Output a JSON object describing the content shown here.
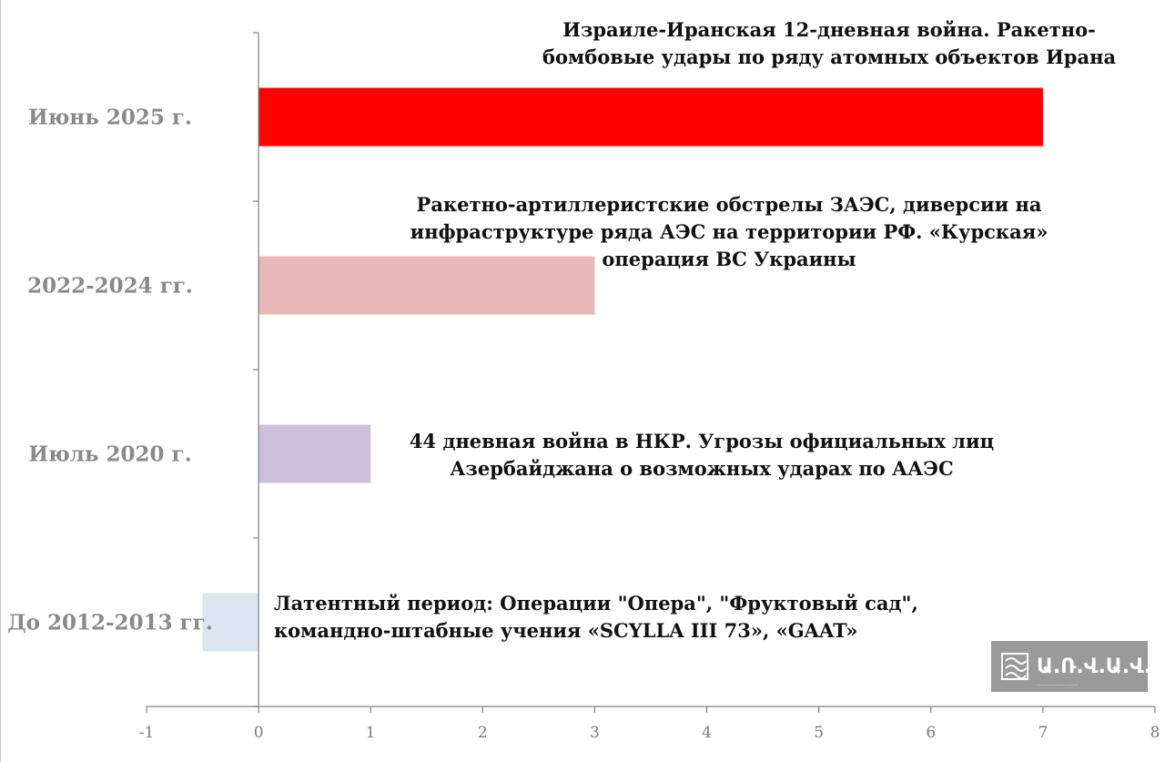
{
  "chart_data": {
    "type": "bar",
    "orientation": "horizontal",
    "categories": [
      "Июнь 2025 г.",
      "2022-2024 гг.",
      "Июль 2020 г.",
      "До 2012-2013 гг."
    ],
    "values": [
      7,
      3,
      1,
      -0.5
    ],
    "colors": [
      "#ff0000",
      "#e6b8b7",
      "#ccc0da",
      "#dce6f1"
    ],
    "annotations": [
      [
        "Израиле-Иранская 12-дневная война. Ракетно-",
        "бомбовые удары по ряду атомных объектов Ирана"
      ],
      [
        "Ракетно-артиллеристские обстрелы ЗАЭС, диверсии на",
        "инфраструктуре ряда АЭС на территории РФ. «Курская»",
        "операция ВС Украины"
      ],
      [
        "44 дневная война в НКР. Угрозы официальных лиц",
        "Азербайджана о возможных ударах по ААЭС"
      ],
      [
        "Латентный период: Операции \"Опера\", \"Фруктовый сад\",",
        "командно-штабные учения «SCYLLA III 73», «GAAT»"
      ]
    ],
    "xticks": [
      "-1",
      "0",
      "1",
      "2",
      "3",
      "4",
      "5",
      "6",
      "7",
      "8"
    ],
    "xlim": [
      -1,
      8
    ],
    "title": "",
    "xlabel": "",
    "ylabel": "",
    "grid": false,
    "legend": "none"
  },
  "watermark": {
    "text": "Ա.Ռ.Վ.Ա.Վ.",
    "subtext": "........................",
    "icon": "logo-icon"
  }
}
